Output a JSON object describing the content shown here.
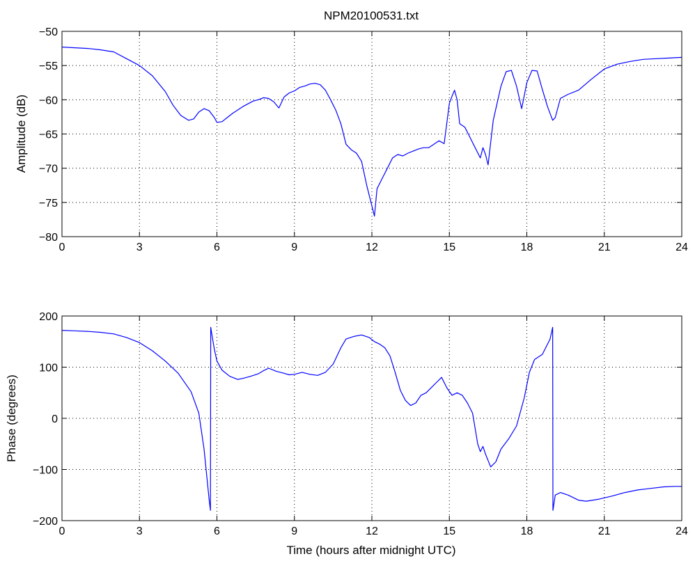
{
  "title": "NPM20100531.txt",
  "colors": {
    "line": "#0000ff",
    "axes": "#000000",
    "grid": "#000000"
  },
  "chart_data": [
    {
      "type": "line",
      "title": "NPM20100531.txt",
      "xlabel": "",
      "ylabel": "Amplitude (dB)",
      "xlim": [
        0,
        24
      ],
      "ylim": [
        -80,
        -50
      ],
      "xticks": [
        0,
        3,
        6,
        9,
        12,
        15,
        18,
        21,
        24
      ],
      "yticks": [
        -80,
        -75,
        -70,
        -65,
        -60,
        -55,
        -50
      ],
      "xtick_labels": [
        "0",
        "3",
        "6",
        "9",
        "12",
        "15",
        "18",
        "21",
        "24"
      ],
      "ytick_labels": [
        "−80",
        "−75",
        "−70",
        "−65",
        "−60",
        "−55",
        "−50"
      ],
      "grid": true,
      "series": [
        {
          "x": [
            0,
            0.5,
            1,
            1.5,
            2,
            2.5,
            3,
            3.5,
            4,
            4.3,
            4.6,
            4.9,
            5.1,
            5.3,
            5.5,
            5.7,
            5.9,
            6,
            6.2,
            6.4,
            6.6,
            6.8,
            7,
            7.2,
            7.4,
            7.6,
            7.8,
            8,
            8.2,
            8.4,
            8.6,
            8.8,
            9,
            9.2,
            9.4,
            9.6,
            9.8,
            10,
            10.2,
            10.4,
            10.6,
            10.8,
            11,
            11.2,
            11.4,
            11.6,
            11.8,
            12,
            12.1,
            12.2,
            12.4,
            12.6,
            12.8,
            13,
            13.2,
            13.4,
            13.6,
            13.8,
            14,
            14.2,
            14.4,
            14.6,
            14.8,
            15,
            15.1,
            15.2,
            15.3,
            15.4,
            15.6,
            15.8,
            16,
            16.2,
            16.3,
            16.4,
            16.5,
            16.7,
            17,
            17.2,
            17.4,
            17.6,
            17.8,
            18,
            18.2,
            18.4,
            18.6,
            18.8,
            19,
            19.1,
            19.3,
            19.6,
            20,
            20.5,
            21,
            21.5,
            22,
            22.5,
            23,
            23.5,
            24
          ],
          "y": [
            -52.3,
            -52.4,
            -52.5,
            -52.7,
            -53.0,
            -54.0,
            -55.0,
            -56.5,
            -58.8,
            -60.8,
            -62.3,
            -63.0,
            -62.8,
            -61.8,
            -61.3,
            -61.6,
            -62.6,
            -63.3,
            -63.2,
            -62.6,
            -62.0,
            -61.5,
            -61.0,
            -60.6,
            -60.2,
            -60.0,
            -59.7,
            -59.8,
            -60.3,
            -61.2,
            -59.6,
            -59.0,
            -58.7,
            -58.2,
            -58.0,
            -57.7,
            -57.6,
            -57.8,
            -58.6,
            -60.0,
            -61.5,
            -63.5,
            -66.5,
            -67.3,
            -67.8,
            -69.0,
            -72.5,
            -75.5,
            -77.0,
            -73.0,
            -71.5,
            -70.0,
            -68.5,
            -68.0,
            -68.2,
            -67.8,
            -67.5,
            -67.2,
            -67.0,
            -67.0,
            -66.5,
            -66.0,
            -66.4,
            -60.5,
            -59.5,
            -58.6,
            -60.0,
            -63.5,
            -64.0,
            -65.5,
            -67.0,
            -68.5,
            -67.0,
            -68.0,
            -69.5,
            -63.0,
            -58.0,
            -55.9,
            -55.7,
            -58.0,
            -61.3,
            -57.5,
            -55.7,
            -55.8,
            -58.5,
            -61.0,
            -63.0,
            -62.6,
            -59.8,
            -59.2,
            -58.6,
            -57.0,
            -55.5,
            -54.8,
            -54.4,
            -54.1,
            -54.0,
            -53.9,
            -53.8
          ]
        }
      ]
    },
    {
      "type": "line",
      "title": "",
      "xlabel": "Time (hours after midnight UTC)",
      "ylabel": "Phase (degrees)",
      "xlim": [
        0,
        24
      ],
      "ylim": [
        -200,
        200
      ],
      "xticks": [
        0,
        3,
        6,
        9,
        12,
        15,
        18,
        21,
        24
      ],
      "yticks": [
        -200,
        -100,
        0,
        100,
        200
      ],
      "xtick_labels": [
        "0",
        "3",
        "6",
        "9",
        "12",
        "15",
        "18",
        "21",
        "24"
      ],
      "ytick_labels": [
        "−200",
        "−100",
        "0",
        "100",
        "200"
      ],
      "grid": true,
      "series": [
        {
          "x": [
            0,
            0.5,
            1,
            1.5,
            2,
            2.5,
            3,
            3.5,
            4,
            4.5,
            5,
            5.3,
            5.5,
            5.6,
            5.7,
            5.75,
            5.76,
            5.8,
            5.9,
            6,
            6.2,
            6.5,
            6.8,
            7,
            7.3,
            7.6,
            7.8,
            8,
            8.3,
            8.6,
            8.8,
            9,
            9.3,
            9.6,
            9.9,
            10.2,
            10.5,
            10.8,
            11,
            11.3,
            11.6,
            11.9,
            12.1,
            12.3,
            12.5,
            12.7,
            12.9,
            13.1,
            13.3,
            13.5,
            13.7,
            13.9,
            14.1,
            14.3,
            14.5,
            14.7,
            14.9,
            15.1,
            15.3,
            15.5,
            15.7,
            15.9,
            16,
            16.1,
            16.2,
            16.3,
            16.4,
            16.6,
            16.8,
            17,
            17.3,
            17.6,
            17.9,
            18.1,
            18.3,
            18.6,
            18.9,
            19.0,
            19.01,
            19.1,
            19.3,
            19.6,
            20,
            20.3,
            20.8,
            21.3,
            21.8,
            22.3,
            22.8,
            23.3,
            23.7,
            24
          ],
          "y": [
            172,
            171,
            170,
            168,
            165,
            158,
            148,
            132,
            112,
            88,
            52,
            10,
            -60,
            -110,
            -160,
            -180,
            178,
            165,
            135,
            112,
            94,
            82,
            76,
            78,
            82,
            87,
            93,
            98,
            92,
            88,
            85,
            86,
            90,
            86,
            84,
            90,
            106,
            138,
            155,
            160,
            163,
            158,
            150,
            145,
            138,
            122,
            90,
            55,
            35,
            25,
            30,
            45,
            50,
            60,
            70,
            80,
            60,
            45,
            50,
            45,
            30,
            10,
            -20,
            -50,
            -65,
            -55,
            -70,
            -95,
            -85,
            -60,
            -40,
            -15,
            40,
            90,
            115,
            125,
            155,
            178,
            -180,
            -150,
            -145,
            -150,
            -160,
            -162,
            -158,
            -152,
            -145,
            -140,
            -137,
            -134,
            -133,
            -133
          ]
        }
      ]
    }
  ]
}
